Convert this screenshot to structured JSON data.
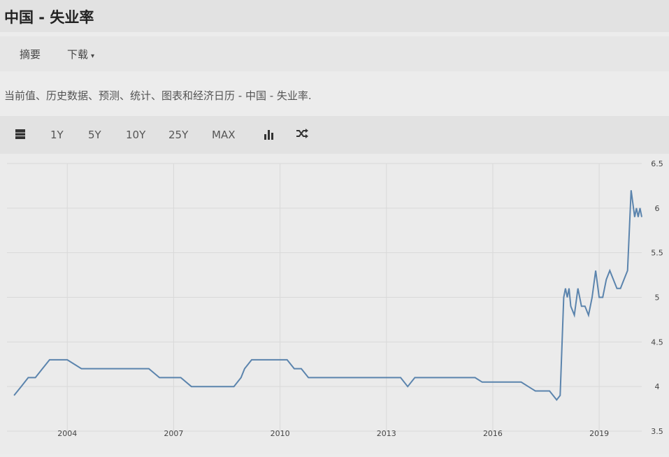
{
  "header": {
    "title": "中国 - 失业率"
  },
  "tabs": [
    {
      "label": "摘要"
    },
    {
      "label": "下载"
    }
  ],
  "download_caret": "▾",
  "description": "当前值、历史数据、预测、统计、图表和经济日历 - 中国 - 失业率.",
  "toolbar": {
    "table_icon": "table-icon",
    "ranges": [
      "1Y",
      "5Y",
      "10Y",
      "25Y",
      "MAX"
    ],
    "bar_chart_icon": "bar-chart-icon",
    "compare_icon": "shuffle-icon"
  },
  "colors": {
    "line": "#5b84ad",
    "grid": "#d9d9d9",
    "background": "#ebebeb"
  },
  "chart_data": {
    "type": "line",
    "title": "",
    "xlabel": "",
    "ylabel": "",
    "x_ticks": [
      "2004",
      "2007",
      "2010",
      "2013",
      "2016",
      "2019"
    ],
    "y_ticks": [
      "3.5",
      "4",
      "4.5",
      "5",
      "5.5",
      "6",
      "6.5"
    ],
    "ylim": [
      3.5,
      6.5
    ],
    "xlim": [
      2002.3,
      2020.2
    ],
    "y_axis_position": "right",
    "grid": true,
    "series": [
      {
        "x": [
          2002.5,
          2002.7,
          2002.9,
          2003.1,
          2003.3,
          2003.5,
          2003.7,
          2003.9,
          2004.0,
          2004.4,
          2004.6,
          2004.8,
          2005.0,
          2005.2,
          2005.5,
          2005.8,
          2006.0,
          2006.3,
          2006.6,
          2006.9,
          2007.2,
          2007.5,
          2007.8,
          2008.1,
          2008.4,
          2008.7,
          2008.9,
          2009.0,
          2009.2,
          2009.4,
          2009.6,
          2009.8,
          2010.0,
          2010.2,
          2010.4,
          2010.6,
          2010.8,
          2011.0,
          2011.5,
          2012.0,
          2012.5,
          2013.0,
          2013.4,
          2013.6,
          2013.8,
          2014.0,
          2014.5,
          2015.0,
          2015.3,
          2015.5,
          2015.7,
          2016.0,
          2016.3,
          2016.5,
          2016.8,
          2017.0,
          2017.2,
          2017.4,
          2017.6,
          2017.8,
          2017.9,
          2018.0,
          2018.05,
          2018.1,
          2018.15,
          2018.2,
          2018.3,
          2018.4,
          2018.5,
          2018.6,
          2018.7,
          2018.8,
          2018.9,
          2019.0,
          2019.1,
          2019.2,
          2019.3,
          2019.4,
          2019.5,
          2019.6,
          2019.7,
          2019.8,
          2019.9,
          2020.0,
          2020.05,
          2020.1,
          2020.15,
          2020.2
        ],
        "y": [
          3.9,
          4.0,
          4.1,
          4.1,
          4.2,
          4.3,
          4.3,
          4.3,
          4.3,
          4.2,
          4.2,
          4.2,
          4.2,
          4.2,
          4.2,
          4.2,
          4.2,
          4.2,
          4.1,
          4.1,
          4.1,
          4.0,
          4.0,
          4.0,
          4.0,
          4.0,
          4.1,
          4.2,
          4.3,
          4.3,
          4.3,
          4.3,
          4.3,
          4.3,
          4.2,
          4.2,
          4.1,
          4.1,
          4.1,
          4.1,
          4.1,
          4.1,
          4.1,
          4.0,
          4.1,
          4.1,
          4.1,
          4.1,
          4.1,
          4.1,
          4.05,
          4.05,
          4.05,
          4.05,
          4.05,
          4.0,
          3.95,
          3.95,
          3.95,
          3.85,
          3.9,
          5.0,
          5.1,
          5.0,
          5.1,
          4.9,
          4.8,
          5.1,
          4.9,
          4.9,
          4.8,
          5.0,
          5.3,
          5.0,
          5.0,
          5.2,
          5.3,
          5.2,
          5.1,
          5.1,
          5.2,
          5.3,
          6.2,
          5.9,
          6.0,
          5.9,
          6.0,
          5.9
        ]
      }
    ]
  }
}
